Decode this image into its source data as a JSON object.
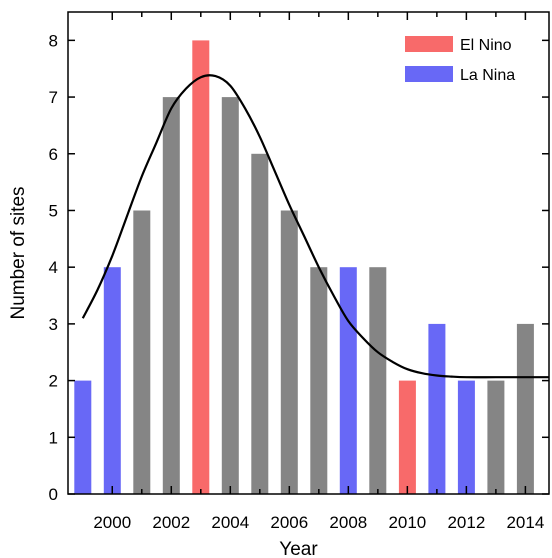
{
  "chart_data": {
    "type": "bar",
    "xlabel": "Year",
    "ylabel": "Number of sites",
    "ylim": [
      0,
      8.5
    ],
    "xlim": [
      1998.5,
      2014.8
    ],
    "yticks": [
      0,
      1,
      2,
      3,
      4,
      5,
      6,
      7,
      8
    ],
    "xticks": [
      2000,
      2002,
      2004,
      2006,
      2008,
      2010,
      2012,
      2014
    ],
    "grid": false,
    "legend_position": "top-right",
    "legend": [
      {
        "label": "El Nino",
        "color": "#f86a6a"
      },
      {
        "label": "La Nina",
        "color": "#6868f6"
      }
    ],
    "colors": {
      "neutral": "#858585",
      "el_nino": "#f86a6a",
      "la_nina": "#6868f6",
      "curve": "#000000"
    },
    "bars": [
      {
        "year": 1999,
        "value": 2,
        "kind": "la_nina"
      },
      {
        "year": 2000,
        "value": 4,
        "kind": "la_nina"
      },
      {
        "year": 2001,
        "value": 5,
        "kind": "neutral"
      },
      {
        "year": 2002,
        "value": 7,
        "kind": "neutral"
      },
      {
        "year": 2003,
        "value": 8,
        "kind": "el_nino"
      },
      {
        "year": 2004,
        "value": 7,
        "kind": "neutral"
      },
      {
        "year": 2005,
        "value": 6,
        "kind": "neutral"
      },
      {
        "year": 2006,
        "value": 5,
        "kind": "neutral"
      },
      {
        "year": 2007,
        "value": 4,
        "kind": "neutral"
      },
      {
        "year": 2008,
        "value": 4,
        "kind": "la_nina"
      },
      {
        "year": 2009,
        "value": 4,
        "kind": "neutral"
      },
      {
        "year": 2010,
        "value": 2,
        "kind": "el_nino"
      },
      {
        "year": 2011,
        "value": 3,
        "kind": "la_nina"
      },
      {
        "year": 2012,
        "value": 2,
        "kind": "la_nina"
      },
      {
        "year": 2013,
        "value": 2,
        "kind": "neutral"
      },
      {
        "year": 2014,
        "value": 3,
        "kind": "neutral"
      }
    ],
    "curve": {
      "x": [
        1999,
        1999.5,
        2000,
        2000.5,
        2001,
        2001.5,
        2002,
        2002.5,
        2003,
        2003.5,
        2004,
        2004.5,
        2005,
        2005.5,
        2006,
        2006.5,
        2007,
        2007.5,
        2008,
        2008.5,
        2009,
        2009.5,
        2010,
        2010.5,
        2011,
        2011.5,
        2012,
        2013,
        2014,
        2014.8
      ],
      "y": [
        3.1,
        3.6,
        4.2,
        4.9,
        5.6,
        6.2,
        6.8,
        7.15,
        7.35,
        7.37,
        7.2,
        6.8,
        6.3,
        5.7,
        5.1,
        4.55,
        4.0,
        3.5,
        3.05,
        2.75,
        2.5,
        2.33,
        2.2,
        2.13,
        2.09,
        2.07,
        2.06,
        2.06,
        2.06,
        2.06
      ]
    }
  }
}
